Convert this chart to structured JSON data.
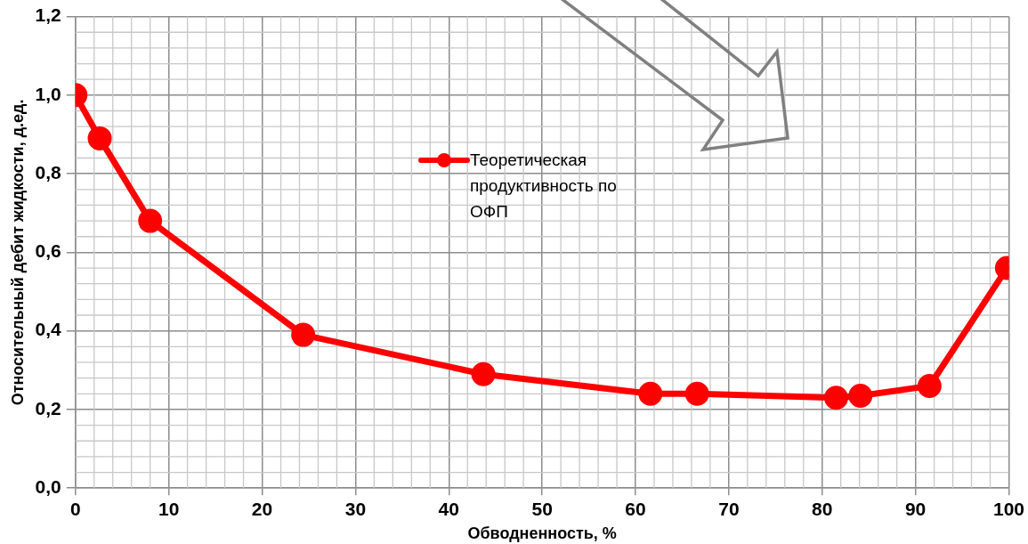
{
  "chart_data": {
    "type": "line",
    "xlabel": "Обводненность, %",
    "ylabel": "Относительный дебит жидкости, д.ед.",
    "x": [
      0,
      2.6,
      8,
      24.4,
      43.7,
      61.6,
      66.6,
      81.5,
      84.1,
      91.5,
      99.8
    ],
    "series": [
      {
        "name": "Теоретическая продуктивность по ОФП",
        "color": "#ff0000",
        "values": [
          1.0,
          0.89,
          0.68,
          0.39,
          0.29,
          0.24,
          0.24,
          0.23,
          0.235,
          0.26,
          0.56
        ]
      }
    ],
    "xlim": [
      0,
      100
    ],
    "xticks": [
      0,
      10,
      20,
      30,
      40,
      50,
      60,
      70,
      80,
      90,
      100
    ],
    "ylim": [
      0,
      1.2
    ],
    "yticks": [
      {
        "value": 0,
        "label": "0,0"
      },
      {
        "value": 0.2,
        "label": "0,2"
      },
      {
        "value": 0.4,
        "label": "0,4"
      },
      {
        "value": 0.6,
        "label": "0,6"
      },
      {
        "value": 0.8,
        "label": "0,8"
      },
      {
        "value": 1,
        "label": "1,0"
      },
      {
        "value": 1.2,
        "label": "1,2"
      }
    ],
    "grid": true,
    "legend": "top",
    "marker": "circle",
    "line_style": "solid"
  }
}
